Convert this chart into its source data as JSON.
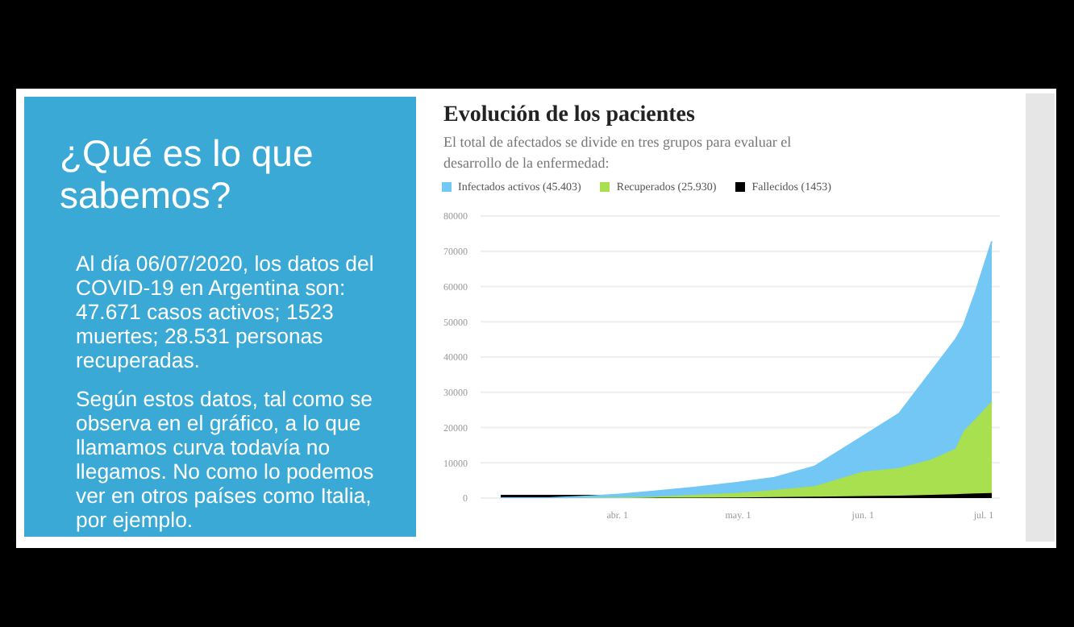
{
  "chart_data": [
    {
      "type": "other",
      "title": "¿Qué es lo que sabemos?",
      "annotations": [
        "Al día 06/07/2020, los datos del COVID-19 en Argentina son:  47.671 casos activos; 1523 muertes; 28.531  personas recuperadas.",
        "Según estos datos, tal como se observa en el gráfico, a lo que llamamos curva todavía no llegamos. No como lo podemos ver en otros países como Italia, por ejemplo."
      ]
    },
    {
      "type": "area",
      "title": "Evolución de los pacientes",
      "subtitle": "El total de afectados se divide en tres grupos para evaluar el desarrollo de la enfermedad:",
      "stacked": true,
      "legend": "top left",
      "grid": "y",
      "x": [
        "2020-03-03",
        "2020-03-15",
        "2020-03-25",
        "2020-04-01",
        "2020-04-10",
        "2020-04-20",
        "2020-05-01",
        "2020-05-10",
        "2020-05-20",
        "2020-06-01",
        "2020-06-10",
        "2020-06-18",
        "2020-06-24",
        "2020-06-26",
        "2020-06-29",
        "2020-07-03"
      ],
      "xlim": [
        "2020-02-27",
        "2020-07-05"
      ],
      "xticks": [
        {
          "value": "2020-04-01",
          "label": "abr. 1"
        },
        {
          "value": "2020-05-01",
          "label": "may. 1"
        },
        {
          "value": "2020-06-01",
          "label": "jun. 1"
        },
        {
          "value": "2020-07-01",
          "label": "jul. 1"
        }
      ],
      "ylim": [
        0,
        80000
      ],
      "yticks": [
        0,
        10000,
        20000,
        30000,
        40000,
        50000,
        60000,
        70000,
        80000
      ],
      "series": [
        {
          "name": "Fallecidos (1453)",
          "color": "#000000",
          "values": [
            0,
            0,
            0,
            0,
            100,
            100,
            200,
            300,
            400,
            600,
            700,
            900,
            1100,
            1200,
            1300,
            1453
          ]
        },
        {
          "name": "Recuperados (25.930)",
          "color": "#a8e04f",
          "values": [
            0,
            0,
            100,
            200,
            300,
            800,
            1300,
            2000,
            3000,
            6900,
            7800,
            10100,
            12900,
            17800,
            21200,
            25930
          ]
        },
        {
          "name": "Infectados activos (45.403)",
          "color": "#72c7f5",
          "values": [
            0,
            0,
            400,
            800,
            1500,
            2100,
            2900,
            3500,
            5600,
            10000,
            15500,
            25000,
            31000,
            30000,
            36000,
            45403
          ]
        }
      ]
    }
  ]
}
